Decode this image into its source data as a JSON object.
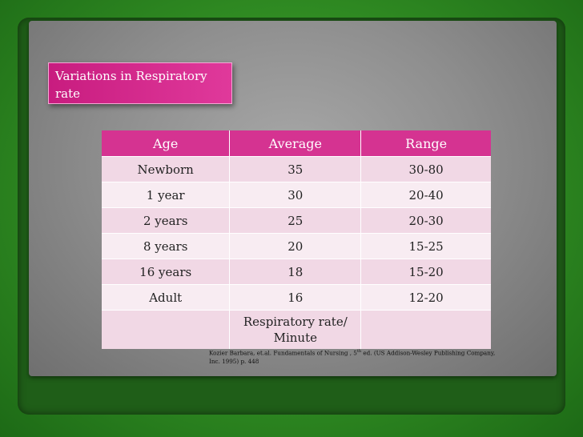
{
  "title": "Variations in Respiratory rate",
  "table": {
    "headers": [
      "Age",
      "Average",
      "Range"
    ],
    "rows": [
      [
        "Newborn",
        "35",
        "30-80"
      ],
      [
        "1 year",
        "30",
        "20-40"
      ],
      [
        "2 years",
        "25",
        "20-30"
      ],
      [
        "8 years",
        "20",
        "15-25"
      ],
      [
        "16 years",
        "18",
        "15-20"
      ],
      [
        "Adult",
        "16",
        "12-20"
      ]
    ],
    "footer": [
      "",
      "Respiratory rate/ Minute",
      ""
    ]
  },
  "citation": {
    "pre": "Kozier Barbara, et.al. Fundamentals of Nursing , 5",
    "sup": "th",
    "post": " ed. (US Addison-Wesley Publishing Company, Inc. 1995) p. 448"
  },
  "colors": {
    "background": "#2f8a22",
    "panel": "#8e8e8e",
    "accent": "#d53391",
    "row_odd": "#f1d8e5",
    "row_even": "#f8ecf2"
  }
}
